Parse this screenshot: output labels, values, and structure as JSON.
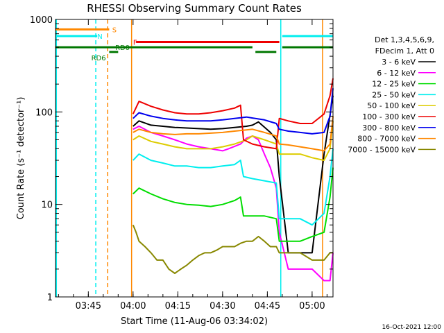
{
  "chart_data": {
    "type": "line",
    "title": "RHESSI Observing Summary Count Rates",
    "xlabel": "Start Time (11-Aug-06 03:34:02)",
    "ylabel": "Count Rate (s⁻¹ detector⁻¹)",
    "y_scale": "log",
    "ylim": [
      1,
      1000
    ],
    "xlim_minutes": [
      0,
      93
    ],
    "x_ticks": [
      {
        "label": "03:45",
        "min": 11
      },
      {
        "label": "04:00",
        "min": 26
      },
      {
        "label": "04:15",
        "min": 41
      },
      {
        "label": "04:30",
        "min": 56
      },
      {
        "label": "04:45",
        "min": 71
      },
      {
        "label": "05:00",
        "min": 86
      }
    ],
    "y_ticks": [
      {
        "label": "1",
        "value": 1
      },
      {
        "label": "10",
        "value": 10
      },
      {
        "label": "100",
        "value": 100
      },
      {
        "label": "1000",
        "value": 1000
      }
    ],
    "legend_header": [
      "Det 1,3,4,5,6,9,",
      "FDecim 1, Att 0"
    ],
    "legend_placement": "right",
    "series": [
      {
        "name": "3 - 6 keV",
        "color": "#000000",
        "x": [
          26,
          28,
          32,
          36,
          40,
          44,
          48,
          52,
          56,
          60,
          64,
          66,
          68,
          72,
          74,
          75,
          78,
          82,
          86,
          90,
          93
        ],
        "y": [
          70,
          80,
          72,
          70,
          68,
          67,
          66,
          65,
          66,
          68,
          70,
          72,
          78,
          60,
          50,
          20,
          3,
          3,
          3,
          35,
          150
        ]
      },
      {
        "name": "6 - 12 keV",
        "color": "#ff00ff",
        "x": [
          26,
          28,
          32,
          36,
          40,
          44,
          48,
          52,
          56,
          58,
          62,
          64,
          66,
          68,
          70,
          72,
          74,
          75,
          78,
          82,
          86,
          90,
          92,
          93
        ],
        "y": [
          65,
          70,
          60,
          55,
          50,
          45,
          42,
          40,
          38,
          40,
          45,
          52,
          55,
          50,
          35,
          25,
          15,
          5,
          2,
          2,
          2,
          1.5,
          1.5,
          3
        ]
      },
      {
        "name": "12 - 25 keV",
        "color": "#00dd00",
        "x": [
          26,
          28,
          32,
          36,
          40,
          44,
          48,
          52,
          56,
          60,
          62,
          63,
          66,
          70,
          74,
          75,
          78,
          82,
          86,
          90,
          92,
          93
        ],
        "y": [
          13,
          15,
          13,
          11.5,
          10.5,
          10,
          9.8,
          9.5,
          10,
          11,
          12,
          7.5,
          7.5,
          7.5,
          7,
          4,
          4,
          4,
          4.5,
          5,
          12,
          25
        ]
      },
      {
        "name": "25 - 50 keV",
        "color": "#00eeee",
        "x": [
          26,
          28,
          32,
          36,
          40,
          44,
          48,
          52,
          56,
          60,
          62,
          63,
          66,
          70,
          74,
          75,
          78,
          82,
          86,
          90,
          92,
          93
        ],
        "y": [
          30,
          35,
          30,
          28,
          26,
          26,
          25,
          25,
          26,
          27,
          30,
          20,
          19,
          18,
          17,
          7,
          7,
          7,
          6,
          8,
          20,
          40
        ]
      },
      {
        "name": "50 - 100 keV",
        "color": "#ddcc00",
        "x": [
          26,
          28,
          32,
          36,
          40,
          44,
          48,
          52,
          56,
          60,
          64,
          66,
          70,
          74,
          75,
          78,
          82,
          86,
          90,
          92,
          93
        ],
        "y": [
          50,
          55,
          48,
          45,
          42,
          40,
          40,
          40,
          42,
          45,
          50,
          55,
          50,
          45,
          35,
          35,
          35,
          32,
          30,
          40,
          80
        ]
      },
      {
        "name": "100 - 300 keV",
        "color": "#ee0000",
        "x": [
          26,
          28,
          32,
          36,
          40,
          44,
          48,
          52,
          56,
          60,
          62,
          63,
          66,
          70,
          74,
          75,
          78,
          82,
          86,
          90,
          92,
          93
        ],
        "y": [
          95,
          130,
          115,
          105,
          98,
          95,
          95,
          98,
          103,
          110,
          118,
          50,
          45,
          42,
          40,
          85,
          80,
          75,
          75,
          95,
          150,
          230
        ]
      },
      {
        "name": "300 - 800 keV",
        "color": "#0000ee",
        "x": [
          26,
          28,
          32,
          36,
          40,
          44,
          48,
          52,
          56,
          60,
          64,
          66,
          70,
          74,
          75,
          78,
          82,
          86,
          90,
          92,
          93
        ],
        "y": [
          85,
          98,
          90,
          85,
          82,
          80,
          80,
          80,
          82,
          85,
          88,
          86,
          82,
          75,
          65,
          62,
          60,
          58,
          60,
          90,
          180
        ]
      },
      {
        "name": "800 - 7000 keV",
        "color": "#ff8800",
        "x": [
          26,
          28,
          32,
          36,
          40,
          44,
          48,
          52,
          56,
          60,
          64,
          66,
          70,
          74,
          75,
          78,
          82,
          86,
          90,
          92,
          93
        ],
        "y": [
          60,
          65,
          60,
          58,
          57,
          58,
          58,
          59,
          60,
          62,
          64,
          65,
          60,
          55,
          45,
          44,
          42,
          40,
          38,
          45,
          90
        ]
      },
      {
        "name": "7000 - 15000 keV",
        "color": "#888800",
        "x": [
          26,
          27,
          28,
          30,
          32,
          34,
          36,
          38,
          40,
          42,
          44,
          46,
          48,
          50,
          52,
          54,
          56,
          58,
          60,
          62,
          64,
          66,
          68,
          70,
          72,
          74,
          75,
          78,
          82,
          86,
          90,
          92,
          93
        ],
        "y": [
          6,
          5,
          4,
          3.5,
          3,
          2.5,
          2.5,
          2,
          1.8,
          2,
          2.2,
          2.5,
          2.8,
          3,
          3,
          3.2,
          3.5,
          3.5,
          3.5,
          3.8,
          4,
          4,
          4.5,
          4,
          3.5,
          3.5,
          3,
          3,
          3,
          2.5,
          2.5,
          3,
          3
        ]
      }
    ],
    "vertical_lines": [
      {
        "min": 0.3,
        "color": "#00eeee",
        "style": "solid"
      },
      {
        "min": 13.5,
        "color": "#00eeee",
        "style": "dashed"
      },
      {
        "min": 17.5,
        "color": "#ff8800",
        "style": "dashed"
      },
      {
        "min": 25.5,
        "color": "#ff8800",
        "style": "solid"
      },
      {
        "min": 75.5,
        "color": "#00eeee",
        "style": "solid"
      },
      {
        "min": 89.5,
        "color": "#ff8800",
        "style": "solid"
      }
    ],
    "status_bars": [
      {
        "label": "S",
        "color": "#ff8800",
        "segments": [
          [
            0,
            18
          ]
        ],
        "level": 780,
        "label_at": 19
      },
      {
        "label": "N",
        "color": "#00eeee",
        "segments": [
          [
            0,
            14
          ],
          [
            76,
            93
          ]
        ],
        "level": 660,
        "label_at": 14
      },
      {
        "label": "F",
        "color": "#ee0000",
        "segments": [
          [
            27,
            75
          ]
        ],
        "level": 570,
        "label_at": 26
      },
      {
        "label": "RD0",
        "color": "#007700",
        "segments": [
          [
            0,
            66
          ],
          [
            76,
            93
          ]
        ],
        "level": 500,
        "label_at": 20
      },
      {
        "label": "RD6",
        "color": "#007700",
        "segments": [
          [
            18,
            21
          ],
          [
            67,
            74
          ]
        ],
        "level": 445,
        "label_at": 12
      }
    ],
    "footer_date": "16-Oct-2021 12:00"
  }
}
